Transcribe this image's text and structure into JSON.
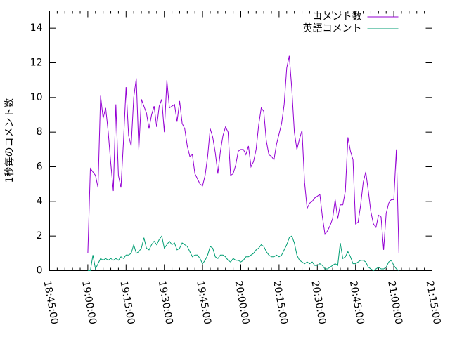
{
  "chart_data": {
    "type": "line",
    "ylabel": "1秒毎のコメント数",
    "x": [
      "19:00:00",
      "19:01:00",
      "19:02:00",
      "19:03:00",
      "19:04:00",
      "19:05:00",
      "19:06:00",
      "19:07:00",
      "19:08:00",
      "19:09:00",
      "19:10:00",
      "19:11:00",
      "19:12:00",
      "19:13:00",
      "19:14:00",
      "19:15:00",
      "19:16:00",
      "19:17:00",
      "19:18:00",
      "19:19:00",
      "19:20:00",
      "19:21:00",
      "19:22:00",
      "19:23:00",
      "19:24:00",
      "19:25:00",
      "19:26:00",
      "19:27:00",
      "19:28:00",
      "19:29:00",
      "19:30:00",
      "19:31:00",
      "19:32:00",
      "19:33:00",
      "19:34:00",
      "19:35:00",
      "19:36:00",
      "19:37:00",
      "19:38:00",
      "19:39:00",
      "19:40:00",
      "19:41:00",
      "19:42:00",
      "19:43:00",
      "19:44:00",
      "19:45:00",
      "19:46:00",
      "19:47:00",
      "19:48:00",
      "19:49:00",
      "19:50:00",
      "19:51:00",
      "19:52:00",
      "19:53:00",
      "19:54:00",
      "19:55:00",
      "19:56:00",
      "19:57:00",
      "19:58:00",
      "19:59:00",
      "20:00:00",
      "20:01:00",
      "20:02:00",
      "20:03:00",
      "20:04:00",
      "20:05:00",
      "20:06:00",
      "20:07:00",
      "20:08:00",
      "20:09:00",
      "20:10:00",
      "20:11:00",
      "20:12:00",
      "20:13:00",
      "20:14:00",
      "20:15:00",
      "20:16:00",
      "20:17:00",
      "20:18:00",
      "20:19:00",
      "20:20:00",
      "20:21:00",
      "20:22:00",
      "20:23:00",
      "20:24:00",
      "20:25:00",
      "20:26:00",
      "20:27:00",
      "20:28:00",
      "20:29:00",
      "20:30:00",
      "20:31:00",
      "20:32:00",
      "20:33:00",
      "20:34:00",
      "20:35:00",
      "20:36:00",
      "20:37:00",
      "20:38:00",
      "20:39:00",
      "20:40:00",
      "20:41:00",
      "20:42:00",
      "20:43:00",
      "20:44:00",
      "20:45:00",
      "20:46:00",
      "20:47:00",
      "20:48:00",
      "20:49:00",
      "20:50:00",
      "20:51:00",
      "20:52:00",
      "20:53:00",
      "20:54:00",
      "20:55:00",
      "20:56:00",
      "20:57:00",
      "20:58:00",
      "20:59:00",
      "21:00:00",
      "21:01:00",
      "21:02:00"
    ],
    "series": [
      {
        "name": "コメント数",
        "color": "#9400d3",
        "values": [
          1.0,
          5.9,
          5.7,
          5.5,
          4.8,
          10.1,
          8.8,
          9.4,
          8.0,
          6.2,
          4.6,
          9.6,
          5.5,
          4.8,
          7.5,
          10.6,
          7.8,
          7.2,
          10.0,
          11.1,
          7.0,
          9.9,
          9.5,
          9.1,
          8.2,
          9.0,
          9.5,
          8.3,
          9.5,
          9.9,
          8.0,
          11.0,
          9.4,
          9.5,
          9.6,
          8.6,
          9.8,
          8.5,
          8.2,
          7.2,
          6.6,
          6.7,
          5.6,
          5.3,
          5.0,
          4.9,
          5.5,
          6.6,
          8.2,
          7.7,
          6.8,
          5.6,
          6.9,
          7.8,
          8.3,
          8.0,
          5.5,
          5.6,
          6.1,
          6.9,
          7.0,
          7.0,
          6.7,
          7.2,
          6.0,
          6.3,
          7.0,
          8.4,
          9.4,
          9.2,
          7.5,
          6.7,
          6.6,
          6.4,
          7.3,
          7.9,
          8.5,
          9.6,
          11.7,
          12.4,
          10.5,
          8.0,
          7.0,
          7.6,
          8.1,
          5.1,
          3.6,
          3.9,
          4.0,
          4.2,
          4.3,
          4.4,
          3.1,
          2.1,
          2.3,
          2.6,
          3.0,
          4.1,
          3.0,
          3.8,
          3.8,
          4.6,
          7.7,
          6.9,
          6.4,
          2.7,
          2.8,
          3.8,
          5.1,
          5.7,
          4.6,
          3.4,
          2.7,
          2.5,
          3.2,
          3.1,
          1.2,
          3.3,
          3.9,
          4.1,
          4.1,
          7.0,
          1.0
        ]
      },
      {
        "name": "英語コメント",
        "color": "#009e73",
        "values": [
          0,
          0,
          0.9,
          0.1,
          0.4,
          0.7,
          0.6,
          0.7,
          0.6,
          0.7,
          0.6,
          0.7,
          0.6,
          0.8,
          0.7,
          0.9,
          0.9,
          1.0,
          1.5,
          1.0,
          1.1,
          1.3,
          1.9,
          1.3,
          1.2,
          1.5,
          1.7,
          1.5,
          1.8,
          2.0,
          1.3,
          1.5,
          1.7,
          1.5,
          1.6,
          1.2,
          1.3,
          1.6,
          1.5,
          1.4,
          1.1,
          0.8,
          0.9,
          0.9,
          0.7,
          0.4,
          0.6,
          0.9,
          1.4,
          1.3,
          0.8,
          0.7,
          0.9,
          0.9,
          0.8,
          0.6,
          0.5,
          0.7,
          0.6,
          0.6,
          0.5,
          0.6,
          0.8,
          0.8,
          0.9,
          1.0,
          1.2,
          1.3,
          1.5,
          1.4,
          1.1,
          0.9,
          0.8,
          0.8,
          0.9,
          0.8,
          0.9,
          1.2,
          1.5,
          1.9,
          2.0,
          1.6,
          0.9,
          0.6,
          0.5,
          0.4,
          0.5,
          0.4,
          0.5,
          0.3,
          0.3,
          0.4,
          0.3,
          0.1,
          0.1,
          0.2,
          0.3,
          0.4,
          0.3,
          1.6,
          0.7,
          0.8,
          1.1,
          0.8,
          0.4,
          0.4,
          0.5,
          0.6,
          0.6,
          0.5,
          0.2,
          0.1,
          0,
          0.1,
          0.2,
          0.1,
          0.1,
          0.2,
          0.5,
          0.6,
          0.3,
          0.1,
          0
        ]
      }
    ],
    "xlim": [
      "18:45:00",
      "21:15:00"
    ],
    "xticks": [
      "18:45:00",
      "19:00:00",
      "19:15:00",
      "19:30:00",
      "19:45:00",
      "20:00:00",
      "20:15:00",
      "20:30:00",
      "20:45:00",
      "21:00:00",
      "21:15:00"
    ],
    "ylim": [
      0,
      15
    ],
    "yticks": [
      0,
      2,
      4,
      6,
      8,
      10,
      12,
      14
    ],
    "legend": "top-right"
  }
}
